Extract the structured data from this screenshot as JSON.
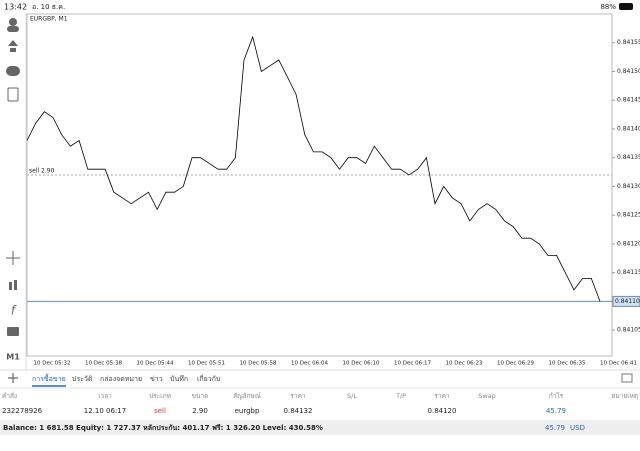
{
  "status_bar": {
    "time": "13:42",
    "date": "อ. 10 ธ.ค.",
    "battery": "88%"
  },
  "sidebar": {
    "timeframe": "M1"
  },
  "chart_data": {
    "type": "line",
    "title": "EURGBP, M1",
    "color": "#000000",
    "values": [
      0.84138,
      0.84141,
      0.84143,
      0.84142,
      0.84139,
      0.84137,
      0.84138,
      0.84133,
      0.84133,
      0.84133,
      0.84129,
      0.84128,
      0.84127,
      0.84128,
      0.84129,
      0.84126,
      0.84129,
      0.84129,
      0.8413,
      0.84135,
      0.84135,
      0.84134,
      0.84133,
      0.84133,
      0.84135,
      0.84152,
      0.84156,
      0.8415,
      0.84151,
      0.84152,
      0.84149,
      0.84146,
      0.84139,
      0.84136,
      0.84136,
      0.84135,
      0.84133,
      0.84135,
      0.84135,
      0.84134,
      0.84137,
      0.84135,
      0.84133,
      0.84133,
      0.84132,
      0.84133,
      0.84135,
      0.84127,
      0.8413,
      0.84128,
      0.84127,
      0.84124,
      0.84126,
      0.84127,
      0.84126,
      0.84124,
      0.84123,
      0.84121,
      0.84121,
      0.8412,
      0.84118,
      0.84118,
      0.84115,
      0.84112,
      0.84114,
      0.84114,
      0.8411
    ],
    "x_labels": [
      "10 Dec 05:32",
      "10 Dec 05:38",
      "10 Dec 05:44",
      "10 Dec 05:51",
      "10 Dec 05:58",
      "10 Dec 06:04",
      "10 Dec 06:10",
      "10 Dec 06:17",
      "10 Dec 06:23",
      "10 Dec 06:29",
      "10 Dec 06:35",
      "10 Dec 06:41"
    ],
    "ylim": [
      0.841005,
      0.8416
    ],
    "yticks": [
      0.84105,
      {
        "value": 0.8411,
        "label": "0.84110"
      },
      0.84115,
      {
        "value": 0.8412,
        "label": "0.84120"
      },
      0.84125,
      {
        "value": 0.8413,
        "label": "0.84130"
      },
      0.84135,
      {
        "value": 0.8414,
        "label": "0.84140"
      },
      0.84145,
      {
        "value": 0.8415,
        "label": "0.84150"
      },
      0.84155
    ],
    "grid": false,
    "order_line": {
      "label": "sell 2.90",
      "value": 0.84132
    },
    "bid_line": {
      "value": 0.8411,
      "label": "0.84110"
    }
  },
  "tabs": [
    "การซื้อขาย",
    "ประวัติ",
    "กล่องจดหมาย",
    "ข่าว",
    "บันทึก",
    "เกี่ยวกับ"
  ],
  "table": {
    "header": [
      "คำสั่ง",
      "เวลา",
      "ประเภท",
      "ขนาด",
      "สัญลักษณ์",
      "ราคา",
      "S/L",
      "T/P",
      "ราคา",
      "Swap",
      "กำไร",
      "หมายเหตุ"
    ],
    "rows": [
      [
        "232278926",
        "12.10 06:17",
        "sell",
        "2.90",
        "eurgbp",
        "0.84132",
        null,
        null,
        "0.84120",
        null,
        "45.79",
        null
      ]
    ]
  },
  "summary": {
    "text": "Balance: 1 681.58 Equity: 1 727.37 หลักประกัน: 401.17 ฟรี: 1 326.20 Level: 430.58%",
    "profit": "45.79",
    "currency": "USD"
  }
}
